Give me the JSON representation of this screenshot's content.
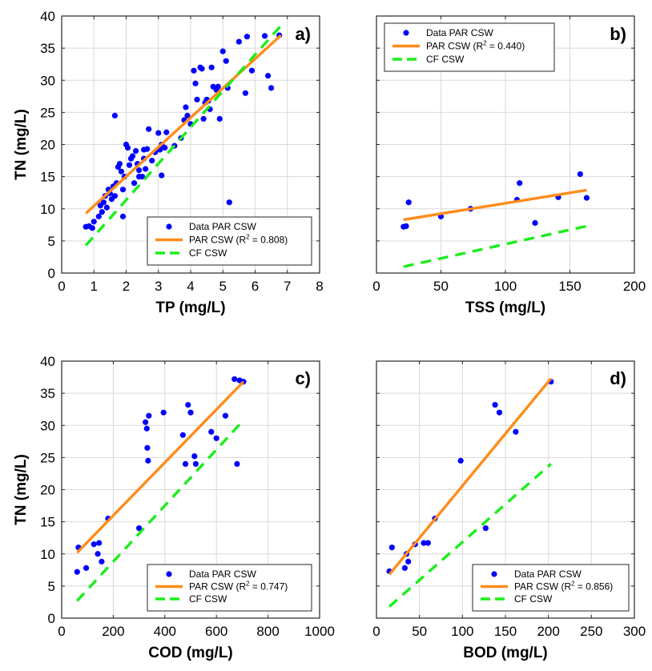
{
  "colors": {
    "points": "#0000ff",
    "fit": "#ff8c1a",
    "cf": "#1aee1a",
    "grid": "#d9d9d9",
    "axis": "#262626"
  },
  "chart_data": [
    {
      "type": "scatter",
      "panel_label": "a)",
      "xlabel": "TP (mg/L)",
      "ylabel": "TN (mg/L)",
      "xlim": [
        0,
        8
      ],
      "ylim": [
        0,
        40
      ],
      "xticks": [
        "0",
        "1",
        "2",
        "3",
        "4",
        "5",
        "6",
        "7",
        "8"
      ],
      "yticks": [
        "0",
        "5",
        "10",
        "15",
        "20",
        "25",
        "30",
        "35",
        "40"
      ],
      "grid": true,
      "legend_position": "bottom-right",
      "legend": {
        "points": "Data PAR CSW",
        "fit": "PAR CSW (R",
        "fit_sup": "2",
        "fit_tail": " = 0.808)",
        "cf": "CF CSW"
      },
      "series": [
        {
          "name": "Data PAR CSW",
          "kind": "points",
          "points": [
            [
              0.75,
              7.2
            ],
            [
              0.85,
              7.3
            ],
            [
              0.95,
              7.0
            ],
            [
              1.0,
              8.0
            ],
            [
              1.15,
              8.8
            ],
            [
              1.2,
              10.5
            ],
            [
              1.25,
              9.5
            ],
            [
              1.3,
              11.0
            ],
            [
              1.35,
              12.0
            ],
            [
              1.4,
              10.2
            ],
            [
              1.45,
              13.0
            ],
            [
              1.5,
              12.4
            ],
            [
              1.55,
              11.5
            ],
            [
              1.6,
              13.5
            ],
            [
              1.65,
              12.0
            ],
            [
              1.7,
              14.0
            ],
            [
              1.75,
              16.5
            ],
            [
              1.8,
              17.0
            ],
            [
              1.85,
              15.8
            ],
            [
              1.9,
              13.0
            ],
            [
              1.95,
              15.0
            ],
            [
              2.0,
              20.0
            ],
            [
              2.05,
              19.5
            ],
            [
              2.1,
              16.8
            ],
            [
              2.15,
              17.8
            ],
            [
              2.2,
              18.2
            ],
            [
              2.25,
              14.0
            ],
            [
              2.3,
              19.0
            ],
            [
              2.35,
              17.0
            ],
            [
              2.4,
              16.0
            ],
            [
              2.5,
              15.0
            ],
            [
              2.55,
              19.2
            ],
            [
              2.6,
              16.2
            ],
            [
              2.65,
              19.3
            ],
            [
              2.7,
              22.4
            ],
            [
              2.8,
              17.5
            ],
            [
              2.9,
              18.8
            ],
            [
              3.0,
              21.8
            ],
            [
              3.05,
              19.2
            ],
            [
              3.1,
              15.2
            ],
            [
              3.2,
              19.5
            ],
            [
              3.25,
              21.9
            ],
            [
              3.5,
              19.8
            ],
            [
              3.7,
              21.0
            ],
            [
              3.8,
              23.8
            ],
            [
              3.85,
              25.8
            ],
            [
              3.9,
              24.5
            ],
            [
              4.0,
              23.2
            ],
            [
              4.1,
              31.5
            ],
            [
              4.15,
              29.5
            ],
            [
              4.2,
              27.0
            ],
            [
              4.3,
              32.0
            ],
            [
              4.35,
              31.8
            ],
            [
              4.4,
              24.0
            ],
            [
              4.45,
              26.5
            ],
            [
              4.5,
              27.0
            ],
            [
              4.55,
              26.8
            ],
            [
              4.6,
              25.5
            ],
            [
              4.65,
              32.0
            ],
            [
              4.7,
              29.0
            ],
            [
              4.8,
              28.5
            ],
            [
              4.85,
              29.0
            ],
            [
              4.9,
              24.0
            ],
            [
              5.0,
              34.5
            ],
            [
              5.1,
              33.0
            ],
            [
              5.15,
              28.8
            ],
            [
              5.2,
              11.0
            ],
            [
              5.5,
              36.0
            ],
            [
              5.7,
              28.0
            ],
            [
              5.75,
              36.8
            ],
            [
              5.9,
              31.5
            ],
            [
              6.3,
              36.9
            ],
            [
              6.4,
              30.7
            ],
            [
              6.5,
              28.8
            ],
            [
              6.75,
              37.0
            ],
            [
              1.65,
              24.5
            ],
            [
              1.9,
              8.8
            ],
            [
              2.4,
              15.0
            ],
            [
              2.55,
              17.8
            ],
            [
              3.1,
              20.0
            ]
          ]
        },
        {
          "name": "PAR CSW (R2 = 0.808)",
          "kind": "line",
          "points": [
            [
              0.75,
              9.3
            ],
            [
              6.8,
              37.0
            ]
          ]
        },
        {
          "name": "CF CSW",
          "kind": "dash",
          "points": [
            [
              0.75,
              4.3
            ],
            [
              6.8,
              38.5
            ]
          ]
        }
      ]
    },
    {
      "type": "scatter",
      "panel_label": "b)",
      "xlabel": "TSS (mg/L)",
      "ylabel": "",
      "xlim": [
        0,
        200
      ],
      "ylim": [
        0,
        40
      ],
      "xticks": [
        "0",
        "50",
        "100",
        "150",
        "200"
      ],
      "yticks": [],
      "grid": true,
      "legend_position": "top-left",
      "legend": {
        "points": "Data PAR CSW",
        "fit": "PAR CSW (R",
        "fit_sup": "2",
        "fit_tail": " = 0.440)",
        "cf": "CF CSW"
      },
      "series": [
        {
          "name": "Data PAR CSW",
          "kind": "points",
          "points": [
            [
              21,
              7.2
            ],
            [
              23,
              7.3
            ],
            [
              25,
              11.0
            ],
            [
              50,
              8.8
            ],
            [
              73,
              10.0
            ],
            [
              109,
              11.4
            ],
            [
              111,
              14.0
            ],
            [
              123,
              7.8
            ],
            [
              141,
              11.8
            ],
            [
              158,
              15.4
            ],
            [
              163,
              11.7
            ]
          ]
        },
        {
          "name": "PAR CSW (R2 = 0.440)",
          "kind": "line",
          "points": [
            [
              21,
              8.3
            ],
            [
              163,
              12.9
            ]
          ]
        },
        {
          "name": "CF CSW",
          "kind": "dash",
          "points": [
            [
              21,
              1.0
            ],
            [
              163,
              7.3
            ]
          ]
        }
      ]
    },
    {
      "type": "scatter",
      "panel_label": "c)",
      "xlabel": "COD (mg/L)",
      "ylabel": "TN (mg/L)",
      "xlim": [
        0,
        1000
      ],
      "ylim": [
        0,
        40
      ],
      "xticks": [
        "0",
        "200",
        "400",
        "600",
        "800",
        "1000"
      ],
      "yticks": [
        "0",
        "5",
        "10",
        "15",
        "20",
        "25",
        "30",
        "35",
        "40"
      ],
      "grid": true,
      "legend_position": "bottom-right",
      "legend": {
        "points": "Data PAR CSW",
        "fit": "PAR CSW (R",
        "fit_sup": "2",
        "fit_tail": " = 0.747)",
        "cf": "CF CSW"
      },
      "series": [
        {
          "name": "Data PAR CSW",
          "kind": "points",
          "points": [
            [
              60,
              7.2
            ],
            [
              65,
              11.0
            ],
            [
              95,
              7.8
            ],
            [
              125,
              11.5
            ],
            [
              140,
              10.0
            ],
            [
              145,
              11.7
            ],
            [
              155,
              8.8
            ],
            [
              180,
              15.5
            ],
            [
              300,
              14.0
            ],
            [
              325,
              30.5
            ],
            [
              330,
              29.5
            ],
            [
              332,
              26.5
            ],
            [
              335,
              24.5
            ],
            [
              338,
              31.5
            ],
            [
              395,
              32.0
            ],
            [
              470,
              28.5
            ],
            [
              480,
              24.0
            ],
            [
              490,
              33.2
            ],
            [
              500,
              32.0
            ],
            [
              515,
              25.2
            ],
            [
              520,
              24.0
            ],
            [
              580,
              29.0
            ],
            [
              600,
              28.0
            ],
            [
              635,
              31.5
            ],
            [
              670,
              37.2
            ],
            [
              680,
              24.0
            ],
            [
              690,
              37.0
            ],
            [
              705,
              36.8
            ]
          ]
        },
        {
          "name": "PAR CSW (R2 = 0.747)",
          "kind": "line",
          "points": [
            [
              60,
              10.2
            ],
            [
              705,
              36.8
            ]
          ]
        },
        {
          "name": "CF CSW",
          "kind": "dash",
          "points": [
            [
              60,
              2.7
            ],
            [
              705,
              30.8
            ]
          ]
        }
      ]
    },
    {
      "type": "scatter",
      "panel_label": "d)",
      "xlabel": "BOD (mg/L)",
      "ylabel": "",
      "xlim": [
        0,
        300
      ],
      "ylim": [
        0,
        40
      ],
      "xticks": [
        "0",
        "50",
        "100",
        "150",
        "200",
        "250",
        "300"
      ],
      "yticks": [],
      "grid": true,
      "legend_position": "bottom-right",
      "legend": {
        "points": "Data PAR CSW",
        "fit": "PAR CSW (R",
        "fit_sup": "2",
        "fit_tail": " = 0.856)",
        "cf": "CF CSW"
      },
      "series": [
        {
          "name": "Data PAR CSW",
          "kind": "points",
          "points": [
            [
              15,
              7.3
            ],
            [
              18,
              11.0
            ],
            [
              33,
              7.8
            ],
            [
              35,
              10.0
            ],
            [
              37,
              8.8
            ],
            [
              45,
              11.5
            ],
            [
              55,
              11.7
            ],
            [
              60,
              11.7
            ],
            [
              68,
              15.5
            ],
            [
              98,
              24.5
            ],
            [
              127,
              14.0
            ],
            [
              138,
              33.2
            ],
            [
              143,
              32.0
            ],
            [
              162,
              29.0
            ],
            [
              203,
              36.8
            ]
          ]
        },
        {
          "name": "PAR CSW (R2 = 0.856)",
          "kind": "line",
          "points": [
            [
              15,
              6.8
            ],
            [
              203,
              37.3
            ]
          ]
        },
        {
          "name": "CF CSW",
          "kind": "dash",
          "points": [
            [
              15,
              1.8
            ],
            [
              203,
              24.0
            ]
          ]
        }
      ]
    }
  ]
}
